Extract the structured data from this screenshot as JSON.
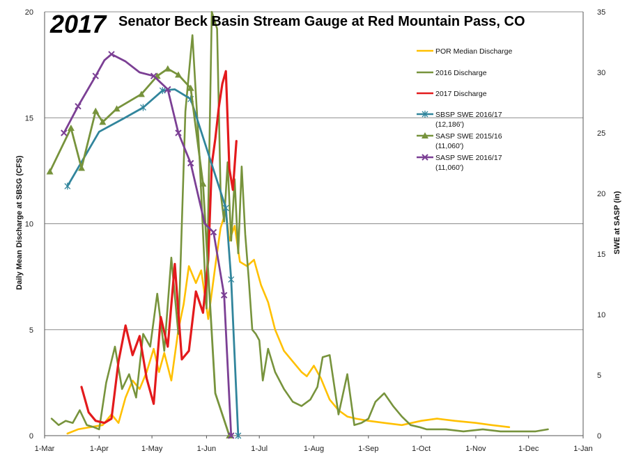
{
  "chart_data": {
    "type": "line",
    "year_label": "2017",
    "title": "Senator Beck Basin Stream Gauge at Red Mountain Pass, CO",
    "ylabel_left": "Daily Mean Discharge at SBSG (CFS)",
    "ylabel_right": "SWE at SASP (in)",
    "x_ticks": [
      "1-Mar",
      "1-Apr",
      "1-May",
      "1-Jun",
      "1-Jul",
      "1-Aug",
      "1-Sep",
      "1-Oct",
      "1-Nov",
      "1-Dec",
      "1-Jan"
    ],
    "ylim_left": [
      0,
      20
    ],
    "y_ticks_left": [
      "0",
      "5",
      "10",
      "15",
      "20"
    ],
    "ylim_right": [
      0,
      35
    ],
    "y_ticks_right": [
      "0",
      "5",
      "10",
      "15",
      "20",
      "25",
      "30",
      "35"
    ],
    "grid": "horizontal",
    "legend_position": "top-right",
    "series": [
      {
        "name": "POR Median Discharge",
        "axis": "left",
        "color": "#FFC000",
        "marker": "none",
        "x": [
          "2017-03-14",
          "2017-03-20",
          "2017-03-27",
          "2017-04-03",
          "2017-04-08",
          "2017-04-12",
          "2017-04-16",
          "2017-04-20",
          "2017-04-24",
          "2017-04-28",
          "2017-05-02",
          "2017-05-05",
          "2017-05-08",
          "2017-05-12",
          "2017-05-16",
          "2017-05-19",
          "2017-05-22",
          "2017-05-26",
          "2017-05-29",
          "2017-06-02",
          "2017-06-06",
          "2017-06-09",
          "2017-06-12",
          "2017-06-14",
          "2017-06-17",
          "2017-06-20",
          "2017-06-24",
          "2017-06-28",
          "2017-07-02",
          "2017-07-06",
          "2017-07-10",
          "2017-07-15",
          "2017-07-20",
          "2017-07-25",
          "2017-07-28",
          "2017-08-01",
          "2017-08-05",
          "2017-08-10",
          "2017-08-15",
          "2017-08-20",
          "2017-08-25",
          "2017-09-01",
          "2017-09-10",
          "2017-09-20",
          "2017-10-01",
          "2017-10-10",
          "2017-10-20",
          "2017-11-01",
          "2017-11-10",
          "2017-11-20"
        ],
        "values": [
          0.1,
          0.3,
          0.4,
          0.5,
          1.0,
          0.6,
          1.8,
          2.6,
          2.2,
          3.0,
          4.1,
          3.0,
          3.9,
          2.6,
          5.0,
          6.2,
          8.0,
          7.2,
          7.8,
          5.5,
          8.0,
          9.8,
          10.6,
          9.2,
          9.9,
          8.2,
          8.0,
          8.3,
          7.1,
          6.3,
          5.0,
          4.0,
          3.5,
          3.0,
          2.8,
          3.3,
          2.7,
          1.7,
          1.2,
          0.9,
          0.8,
          0.7,
          0.6,
          0.5,
          0.7,
          0.8,
          0.7,
          0.6,
          0.5,
          0.4
        ]
      },
      {
        "name": "2016 Discharge",
        "axis": "left",
        "color": "#77933C",
        "marker": "none",
        "x": [
          "2017-03-05",
          "2017-03-09",
          "2017-03-13",
          "2017-03-17",
          "2017-03-21",
          "2017-03-25",
          "2017-03-29",
          "2017-04-01",
          "2017-04-05",
          "2017-04-10",
          "2017-04-14",
          "2017-04-18",
          "2017-04-22",
          "2017-04-26",
          "2017-04-30",
          "2017-05-04",
          "2017-05-08",
          "2017-05-12",
          "2017-05-16",
          "2017-05-20",
          "2017-05-24",
          "2017-05-28",
          "2017-06-01",
          "2017-06-04",
          "2017-06-07",
          "2017-06-09",
          "2017-06-11",
          "2017-06-13",
          "2017-06-15",
          "2017-06-17",
          "2017-06-19",
          "2017-06-21",
          "2017-06-23",
          "2017-06-25",
          "2017-06-27",
          "2017-06-29",
          "2017-07-01",
          "2017-07-03",
          "2017-07-06",
          "2017-07-10",
          "2017-07-15",
          "2017-07-20",
          "2017-07-25",
          "2017-07-30",
          "2017-08-03",
          "2017-08-06",
          "2017-08-10",
          "2017-08-15",
          "2017-08-20",
          "2017-08-24",
          "2017-08-28",
          "2017-09-01",
          "2017-09-05",
          "2017-09-10",
          "2017-09-15",
          "2017-09-20",
          "2017-09-25",
          "2017-09-30",
          "2017-10-04",
          "2017-10-08",
          "2017-10-15",
          "2017-10-25",
          "2017-11-05",
          "2017-11-15",
          "2017-11-25",
          "2017-12-05",
          "2017-12-12"
        ],
        "values": [
          0.8,
          0.5,
          0.7,
          0.6,
          1.2,
          0.5,
          0.4,
          0.3,
          2.5,
          4.2,
          2.2,
          2.9,
          1.8,
          4.8,
          4.2,
          6.7,
          4.0,
          8.4,
          4.8,
          15.3,
          18.9,
          13.2,
          6.0,
          20.0,
          19.2,
          11.5,
          10.1,
          12.9,
          9.2,
          12.1,
          8.6,
          12.7,
          9.5,
          7.4,
          5.0,
          4.8,
          4.5,
          2.6,
          4.1,
          3.0,
          2.2,
          1.6,
          1.4,
          1.7,
          2.3,
          3.7,
          3.8,
          1.0,
          2.9,
          0.5,
          0.6,
          0.8,
          1.6,
          2.0,
          1.4,
          0.9,
          0.5,
          0.4,
          0.3,
          0.3,
          0.3,
          0.2,
          0.3,
          0.2,
          0.2,
          0.2,
          0.3
        ]
      },
      {
        "name": "2017 Discharge",
        "axis": "left",
        "color": "#E31A1C",
        "marker": "none",
        "x": [
          "2017-03-22",
          "2017-03-26",
          "2017-03-30",
          "2017-04-04",
          "2017-04-08",
          "2017-04-12",
          "2017-04-16",
          "2017-04-20",
          "2017-04-24",
          "2017-04-28",
          "2017-05-02",
          "2017-05-06",
          "2017-05-10",
          "2017-05-14",
          "2017-05-18",
          "2017-05-22",
          "2017-05-26",
          "2017-05-30",
          "2017-06-02",
          "2017-06-04",
          "2017-06-06",
          "2017-06-08",
          "2017-06-10",
          "2017-06-12",
          "2017-06-14",
          "2017-06-16",
          "2017-06-18"
        ],
        "values": [
          2.3,
          1.1,
          0.7,
          0.6,
          0.8,
          3.5,
          5.2,
          3.8,
          4.7,
          2.7,
          1.5,
          5.6,
          4.2,
          8.1,
          3.6,
          4.0,
          6.8,
          5.8,
          8.3,
          12.8,
          14.0,
          15.5,
          16.6,
          17.2,
          12.6,
          11.6,
          13.9
        ]
      },
      {
        "name": "SBSP SWE 2016/17\n(12,186')",
        "axis": "right",
        "color": "#31859C",
        "marker": "asterisk",
        "x": [
          "2017-03-14",
          "2017-04-01",
          "2017-04-15",
          "2017-04-26",
          "2017-05-07",
          "2017-05-14",
          "2017-05-23",
          "2017-06-12",
          "2017-06-15",
          "2017-06-19"
        ],
        "values": [
          20.6,
          25.1,
          26.2,
          27.1,
          28.5,
          28.6,
          27.8,
          18.8,
          12.9,
          0.0
        ],
        "markers_at": [
          0,
          3,
          4,
          6,
          7,
          8,
          9
        ]
      },
      {
        "name": "SASP SWE 2015/16\n(11,060')",
        "axis": "right",
        "color": "#77933C",
        "marker": "triangle",
        "x": [
          "2017-03-04",
          "2017-03-16",
          "2017-03-22",
          "2017-03-30",
          "2017-04-03",
          "2017-04-11",
          "2017-04-25",
          "2017-05-04",
          "2017-05-10",
          "2017-05-16",
          "2017-05-23",
          "2017-05-30",
          "2017-06-06",
          "2017-06-14"
        ],
        "values": [
          21.8,
          25.4,
          22.1,
          26.8,
          25.9,
          27.0,
          28.2,
          29.7,
          30.3,
          29.8,
          28.7,
          20.8,
          3.5,
          0.0
        ],
        "markers_at": [
          0,
          1,
          2,
          3,
          4,
          5,
          6,
          7,
          8,
          9,
          10,
          11,
          13
        ]
      },
      {
        "name": "SASP SWE 2016/17\n(11,060')",
        "axis": "right",
        "color": "#7B3F94",
        "marker": "x",
        "x": [
          "2017-03-12",
          "2017-03-20",
          "2017-03-30",
          "2017-04-04",
          "2017-04-08",
          "2017-04-16",
          "2017-04-24",
          "2017-05-02",
          "2017-05-10",
          "2017-05-16",
          "2017-05-23",
          "2017-05-31",
          "2017-06-05",
          "2017-06-11",
          "2017-06-15"
        ],
        "values": [
          25.0,
          27.2,
          29.7,
          31.0,
          31.5,
          30.9,
          30.0,
          29.7,
          28.6,
          25.0,
          22.5,
          17.5,
          16.8,
          11.6,
          0.0
        ],
        "markers_at": [
          0,
          1,
          2,
          4,
          7,
          8,
          9,
          10,
          12,
          13,
          14
        ]
      }
    ]
  }
}
